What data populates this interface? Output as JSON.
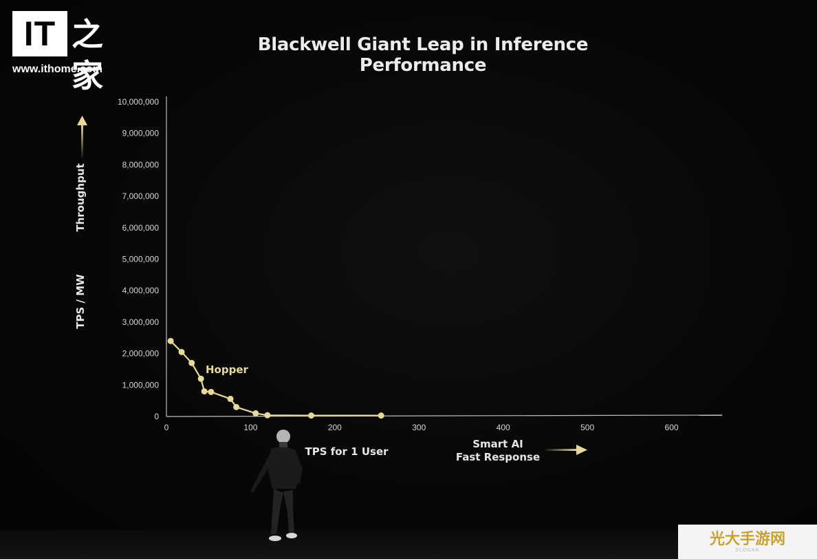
{
  "brand": {
    "logo_text": "IT",
    "logo_chinese": "之家",
    "url": "www.ithome.com"
  },
  "watermark": {
    "text": "光大手游网",
    "sub": "SLOGAN"
  },
  "colors": {
    "background": "#060606",
    "series": "#e6d99a",
    "axis": "#cfcfcf",
    "text": "#ececec"
  },
  "chart_data": {
    "type": "line",
    "title": "Blackwell Giant Leap in Inference Performance",
    "xlabel": "TPS for 1 User",
    "ylabel": "TPS / MW",
    "ylabel_arrow_text": "Throughput",
    "x_arrow_text": [
      "Smart AI",
      "Fast Response"
    ],
    "xlim": [
      0,
      660
    ],
    "ylim": [
      0,
      10000000
    ],
    "x_ticks": [
      0,
      100,
      200,
      300,
      400,
      500,
      600
    ],
    "x_tick_labels": [
      "0",
      "100",
      "200",
      "300",
      "400",
      "500",
      "600"
    ],
    "y_ticks": [
      0,
      1000000,
      2000000,
      3000000,
      4000000,
      5000000,
      6000000,
      7000000,
      8000000,
      9000000,
      10000000
    ],
    "y_tick_labels": [
      "0",
      "1,000,000",
      "2,000,000",
      "3,000,000",
      "4,000,000",
      "5,000,000",
      "6,000,000",
      "7,000,000",
      "8,000,000",
      "9,000,000",
      "10,000,000"
    ],
    "grid": false,
    "series": [
      {
        "name": "Hopper",
        "x": [
          5,
          18,
          30,
          41,
          45,
          53,
          76,
          83,
          106,
          120,
          172,
          255
        ],
        "y": [
          2400000,
          2050000,
          1700000,
          1200000,
          800000,
          780000,
          560000,
          300000,
          100000,
          40000,
          30000,
          30000
        ]
      }
    ]
  }
}
